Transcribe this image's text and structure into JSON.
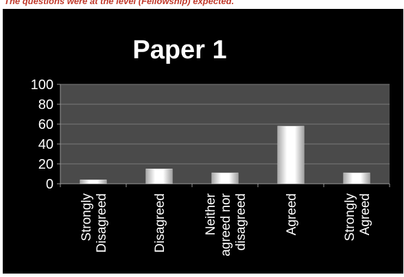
{
  "caption": "The questions were at the level (Fellowship) expected.",
  "chart_data": {
    "type": "bar",
    "title": "Paper 1",
    "categories": [
      [
        "Strongly",
        "Disagreed"
      ],
      [
        "Disagreed"
      ],
      [
        "Neither",
        "agreed nor",
        "disagreed"
      ],
      [
        "Agreed"
      ],
      [
        "Strongly",
        "Agreed"
      ]
    ],
    "values": [
      4,
      15,
      11,
      58,
      11
    ],
    "ylim": [
      0,
      100
    ],
    "yticks": [
      0,
      20,
      40,
      60,
      80,
      100
    ],
    "grid": true,
    "legend": "none",
    "colors": {
      "background": "#000000",
      "plot_area": "#4a4a4a",
      "gridline": "#7a7a7a",
      "axis": "#9a9a9a",
      "text": "#ffffff",
      "bar_light": "#ffffff",
      "bar_dark": "#9a9a9a"
    }
  }
}
